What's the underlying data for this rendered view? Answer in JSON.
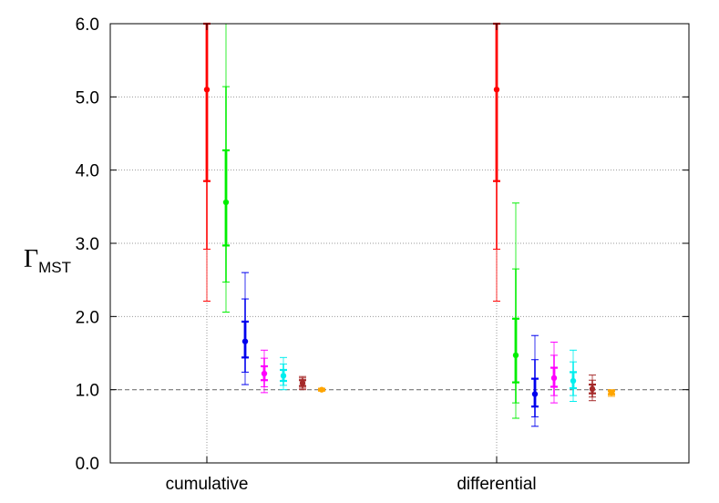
{
  "chart_data": {
    "type": "errorbar",
    "title": "",
    "xlabel": "",
    "ylabel": {
      "main": "Γ",
      "sub": "MST"
    },
    "ylim": [
      0,
      6
    ],
    "yticks": [
      "0.0",
      "1.0",
      "2.0",
      "3.0",
      "4.0",
      "5.0",
      "6.0"
    ],
    "grid": true,
    "reference_line": 1.0,
    "categories": [
      "cumulative",
      "differential"
    ],
    "series": [
      {
        "color": "#ff0000",
        "points": [
          {
            "group": "cumulative",
            "y": 5.1,
            "inner": [
              3.85,
              6.0
            ],
            "mid": [
              2.92,
              6.0
            ],
            "outer": [
              2.21,
              6.0
            ]
          },
          {
            "group": "differential",
            "y": 5.1,
            "inner": [
              3.85,
              6.0
            ],
            "mid": [
              2.92,
              6.0
            ],
            "outer": [
              2.21,
              6.0
            ]
          }
        ]
      },
      {
        "color": "#00ee00",
        "points": [
          {
            "group": "cumulative",
            "y": 3.56,
            "inner": [
              2.97,
              4.27
            ],
            "mid": [
              2.47,
              5.14
            ],
            "outer": [
              2.06,
              6.0
            ]
          },
          {
            "group": "differential",
            "y": 1.47,
            "inner": [
              1.1,
              1.97
            ],
            "mid": [
              0.82,
              2.65
            ],
            "outer": [
              0.61,
              3.55
            ]
          }
        ]
      },
      {
        "color": "#0000ee",
        "points": [
          {
            "group": "cumulative",
            "y": 1.66,
            "inner": [
              1.44,
              1.93
            ],
            "mid": [
              1.24,
              2.24
            ],
            "outer": [
              1.07,
              2.6
            ]
          },
          {
            "group": "differential",
            "y": 0.94,
            "inner": [
              0.77,
              1.15
            ],
            "mid": [
              0.63,
              1.41
            ],
            "outer": [
              0.5,
              1.74
            ]
          }
        ]
      },
      {
        "color": "#ff00ff",
        "points": [
          {
            "group": "cumulative",
            "y": 1.22,
            "inner": [
              1.13,
              1.32
            ],
            "mid": [
              1.04,
              1.43
            ],
            "outer": [
              0.96,
              1.54
            ]
          },
          {
            "group": "differential",
            "y": 1.16,
            "inner": [
              1.04,
              1.3
            ],
            "mid": [
              0.92,
              1.47
            ],
            "outer": [
              0.82,
              1.65
            ]
          }
        ]
      },
      {
        "color": "#00eeee",
        "points": [
          {
            "group": "cumulative",
            "y": 1.19,
            "inner": [
              1.12,
              1.27
            ],
            "mid": [
              1.06,
              1.35
            ],
            "outer": [
              1.0,
              1.44
            ]
          },
          {
            "group": "differential",
            "y": 1.12,
            "inner": [
              1.02,
              1.24
            ],
            "mid": [
              0.92,
              1.38
            ],
            "outer": [
              0.84,
              1.54
            ]
          }
        ]
      },
      {
        "color": "#a52a2a",
        "points": [
          {
            "group": "cumulative",
            "y": 1.09,
            "inner": [
              1.05,
              1.13
            ],
            "mid": [
              1.02,
              1.16
            ],
            "outer": [
              1.0,
              1.18
            ]
          },
          {
            "group": "differential",
            "y": 1.01,
            "inner": [
              0.95,
              1.07
            ],
            "mid": [
              0.9,
              1.13
            ],
            "outer": [
              0.85,
              1.2
            ]
          }
        ]
      },
      {
        "color": "#ffa500",
        "points": [
          {
            "group": "cumulative",
            "y": 1.0,
            "inner": [
              0.99,
              1.01
            ],
            "mid": [
              0.985,
              1.015
            ],
            "outer": [
              0.98,
              1.02
            ]
          },
          {
            "group": "differential",
            "y": 0.96,
            "inner": [
              0.94,
              0.98
            ],
            "mid": [
              0.93,
              0.99
            ],
            "outer": [
              0.91,
              1.0
            ]
          }
        ]
      }
    ]
  }
}
